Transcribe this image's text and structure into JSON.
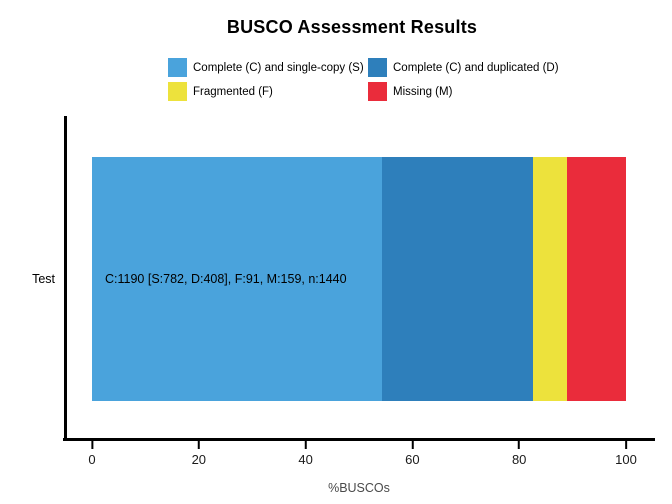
{
  "title": "BUSCO Assessment Results",
  "legend": {
    "items": [
      {
        "label": "Complete (C) and single-copy (S)",
        "color": "#4AA3DC"
      },
      {
        "label": "Complete (C) and duplicated (D)",
        "color": "#2E7FBB"
      },
      {
        "label": "Fragmented (F)",
        "color": "#EDE23C"
      },
      {
        "label": "Missing (M)",
        "color": "#EA2C3B"
      }
    ]
  },
  "axes": {
    "y_category": "Test",
    "x_label": "%BUSCOs",
    "x_ticks": [
      0,
      20,
      40,
      60,
      80,
      100
    ]
  },
  "bar_label": "C:1190 [S:782, D:408], F:91, M:159, n:1440",
  "chart_data": {
    "type": "bar",
    "orientation": "horizontal",
    "stacked": true,
    "title": "BUSCO Assessment Results",
    "xlabel": "%BUSCOs",
    "ylabel": "",
    "xlim": [
      0,
      100
    ],
    "x_ticks": [
      0,
      20,
      40,
      60,
      80,
      100
    ],
    "grid": false,
    "legend_position": "top",
    "categories": [
      "Test"
    ],
    "series": [
      {
        "name": "Complete (C) and single-copy (S)",
        "color": "#4AA3DC",
        "count": 782,
        "values": [
          54.31
        ]
      },
      {
        "name": "Complete (C) and duplicated (D)",
        "color": "#2E7FBB",
        "count": 408,
        "values": [
          28.33
        ]
      },
      {
        "name": "Fragmented (F)",
        "color": "#EDE23C",
        "count": 91,
        "values": [
          6.32
        ]
      },
      {
        "name": "Missing (M)",
        "color": "#EA2C3B",
        "count": 159,
        "values": [
          11.04
        ]
      }
    ],
    "totals": {
      "complete": 1190,
      "single_copy": 782,
      "duplicated": 408,
      "fragmented": 91,
      "missing": 159,
      "n": 1440
    },
    "annotations": [
      "C:1190 [S:782, D:408], F:91, M:159, n:1440"
    ]
  }
}
